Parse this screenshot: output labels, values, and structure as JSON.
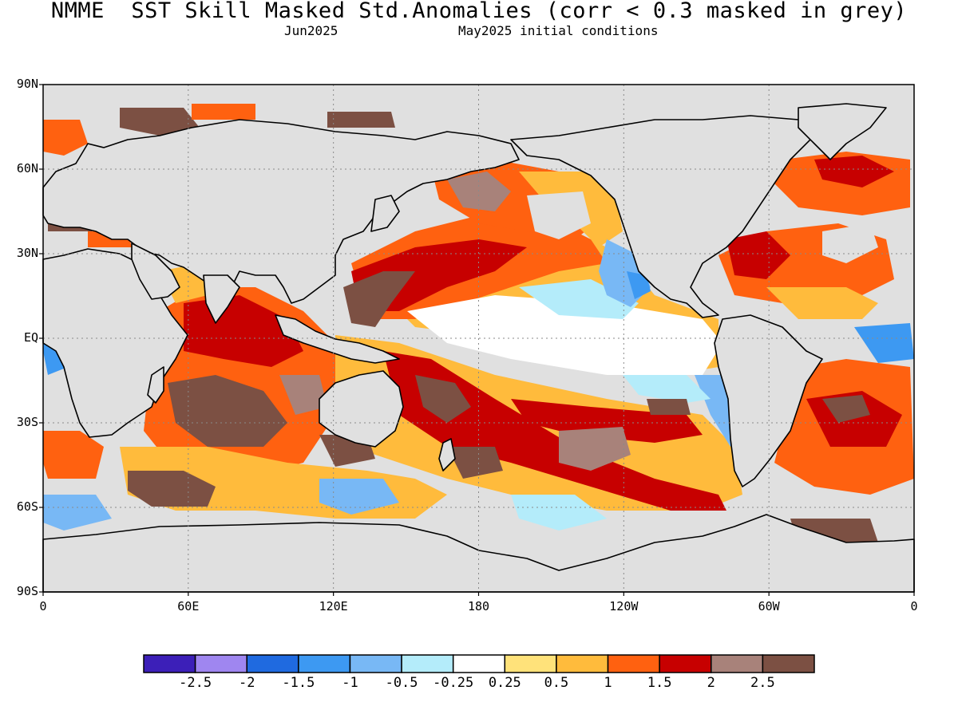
{
  "title": "NMME  SST Skill Masked Std.Anomalies (corr < 0.3 masked in grey)",
  "subtitle": {
    "target_month": "Jun2025",
    "initial_conditions": "May2025 initial conditions"
  },
  "map": {
    "projection": "cylindrical equidistant",
    "lat_range": [
      -90,
      90
    ],
    "lon_range": [
      0,
      360
    ],
    "mask_color": "#e0e0e0",
    "land_color": "#e0e0e0",
    "coastline_color": "#000000",
    "grid": true,
    "lat_ticks": [
      {
        "value": 90,
        "label": "90N"
      },
      {
        "value": 60,
        "label": "60N"
      },
      {
        "value": 30,
        "label": "30N"
      },
      {
        "value": 0,
        "label": "EQ"
      },
      {
        "value": -30,
        "label": "30S"
      },
      {
        "value": -60,
        "label": "60S"
      },
      {
        "value": -90,
        "label": "90S"
      }
    ],
    "lon_ticks": [
      {
        "value": 0,
        "label": "0"
      },
      {
        "value": 60,
        "label": "60E"
      },
      {
        "value": 120,
        "label": "120E"
      },
      {
        "value": 180,
        "label": "180"
      },
      {
        "value": 240,
        "label": "120W"
      },
      {
        "value": 300,
        "label": "60W"
      },
      {
        "value": 360,
        "label": "0"
      }
    ]
  },
  "colorbar": {
    "colors": [
      "#3c1fb8",
      "#9f86f0",
      "#1f6ae0",
      "#3d99f2",
      "#78b8f5",
      "#b4ecfa",
      "#ffffff",
      "#ffe27a",
      "#ffbb3c",
      "#ff6110",
      "#c70000",
      "#a8827a",
      "#7c5043"
    ],
    "labels": [
      "-2.5",
      "-2",
      "-1.5",
      "-1",
      "-0.5",
      "-0.25",
      "0.25",
      "0.5",
      "1",
      "1.5",
      "2",
      "2.5"
    ]
  }
}
